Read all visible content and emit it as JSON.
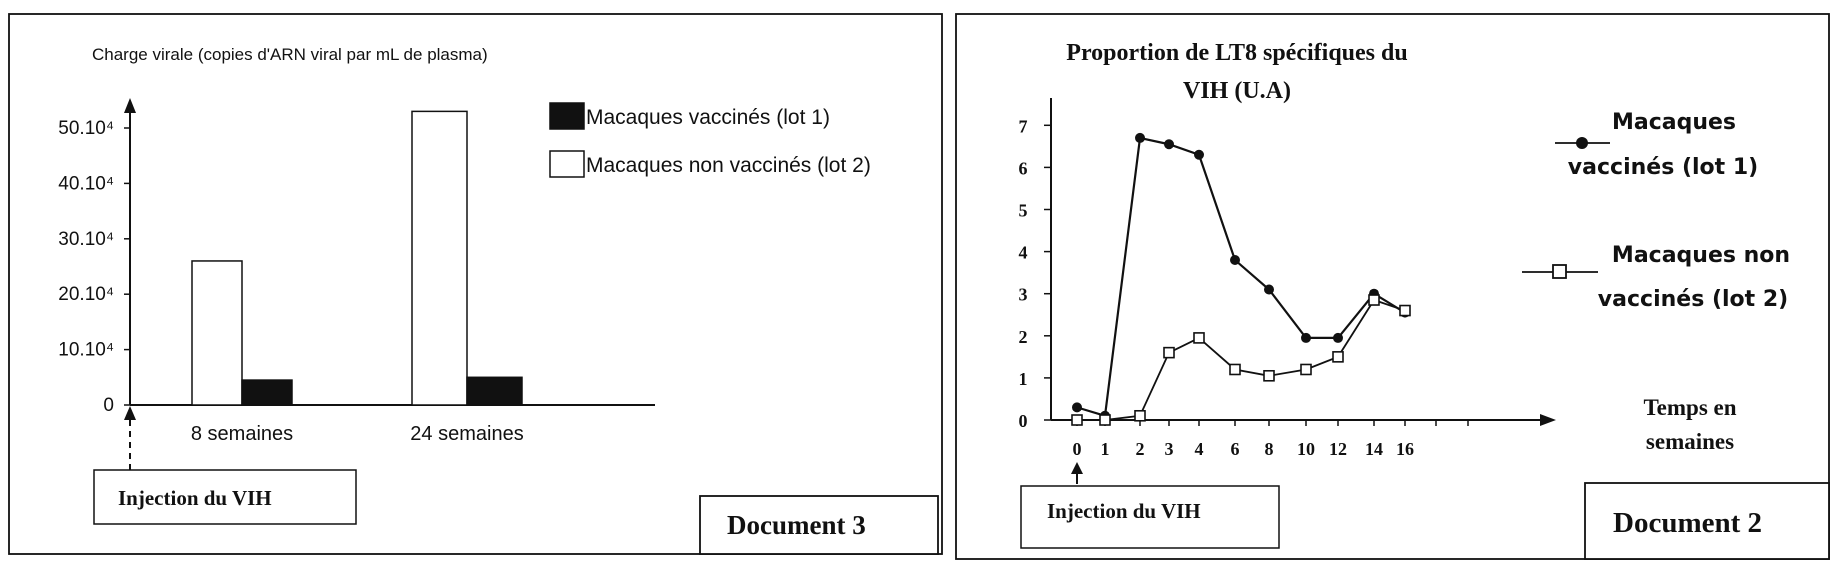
{
  "doc3": {
    "ylabel": "Charge virale (copies d'ARN viral par mL de plasma)",
    "legend": {
      "vaccinated": "Macaques vaccinés (lot 1)",
      "unvaccinated": "Macaques non vaccinés (lot 2)"
    },
    "injection_label": "Injection du VIH",
    "doc_label": "Document  3"
  },
  "doc2": {
    "title_line1": "Proportion de LT8 spécifiques du",
    "title_line2": "VIH (U.A)",
    "xlabel_line1": "Temps en",
    "xlabel_line2": "semaines",
    "legend": {
      "vaccinated_line1": "Macaques",
      "vaccinated_line2": "vaccinés  (lot 1)",
      "unvaccinated_line1": "Macaques non",
      "unvaccinated_line2": "vaccinés  (lot 2)"
    },
    "injection_label": "Injection du VIH",
    "doc_label": "Document 2"
  },
  "colors": {
    "vaccinated": "#111111",
    "unvaccinated": "#ffffff",
    "axis": "#111111"
  },
  "chart_data": [
    {
      "type": "bar",
      "title": "",
      "ylabel": "Charge virale (copies d'ARN viral par mL de plasma)",
      "xlabel": "",
      "categories": [
        "8 semaines",
        "24 semaines"
      ],
      "series": [
        {
          "name": "Macaques non vaccinés (lot 2)",
          "values": [
            260000,
            530000
          ]
        },
        {
          "name": "Macaques vaccinés (lot 1)",
          "values": [
            45000,
            50000
          ]
        }
      ],
      "yticks": [
        "0",
        "10.10⁴",
        "20.10⁴",
        "30.10⁴",
        "40.10⁴",
        "50.10⁴"
      ],
      "ylim": [
        0,
        550000
      ],
      "grid": false,
      "legend": "top-right"
    },
    {
      "type": "line",
      "title": "Proportion de LT8 spécifiques du VIH (U.A)",
      "xlabel": "Temps en semaines",
      "ylabel": "",
      "x": [
        0,
        1,
        2,
        3,
        4,
        6,
        8,
        10,
        12,
        14,
        16
      ],
      "xticks": [
        "0",
        "1",
        "2",
        "3",
        "4",
        "6",
        "8",
        "10",
        "12",
        "14",
        "16"
      ],
      "yticks": [
        "0",
        "1",
        "2",
        "3",
        "4",
        "5",
        "6",
        "7"
      ],
      "series": [
        {
          "name": "Macaques vaccinés (lot 1)",
          "marker": "filled-circle",
          "values": [
            0.3,
            0.1,
            6.7,
            6.55,
            6.3,
            3.8,
            3.1,
            1.95,
            1.95,
            3.0,
            2.55
          ]
        },
        {
          "name": "Macaques non vaccinés (lot 2)",
          "marker": "open-square",
          "values": [
            0.0,
            0.0,
            0.1,
            1.6,
            1.95,
            1.2,
            1.05,
            1.2,
            1.5,
            2.85,
            2.6
          ]
        }
      ],
      "ylim": [
        0,
        7
      ],
      "grid": false,
      "legend": "right"
    }
  ]
}
